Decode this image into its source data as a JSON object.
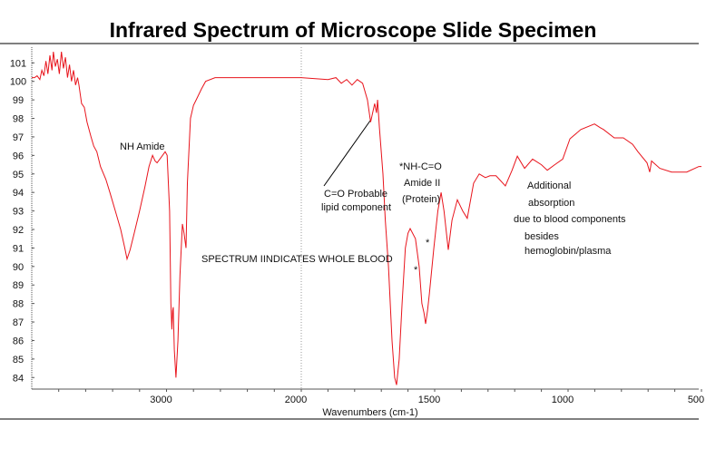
{
  "chart_data": {
    "type": "line",
    "title": "Infrared Spectrum of Microscope Slide Specimen",
    "xlabel": "Wavenumbers (cm-1)",
    "ylabel": "",
    "xlim": [
      4000,
      500
    ],
    "ylim": [
      83.4,
      102
    ],
    "x_scale_note": "2x expanded below 2000",
    "x_ticks": [
      3000,
      2000,
      1500,
      1000,
      500
    ],
    "y_ticks": [
      84,
      85,
      86,
      87,
      88,
      89,
      90,
      91,
      92,
      93,
      94,
      95,
      96,
      97,
      98,
      99,
      100,
      101
    ],
    "grid": false,
    "line_color": "#e8141c",
    "series": [
      {
        "name": "spectrum",
        "x": [
          4000,
          3980,
          3960,
          3940,
          3925,
          3910,
          3895,
          3880,
          3865,
          3850,
          3840,
          3825,
          3810,
          3795,
          3780,
          3765,
          3750,
          3735,
          3720,
          3705,
          3690,
          3675,
          3660,
          3650,
          3630,
          3610,
          3590,
          3560,
          3540,
          3517,
          3490,
          3450,
          3420,
          3380,
          3340,
          3310,
          3293,
          3270,
          3240,
          3200,
          3160,
          3130,
          3104,
          3085,
          3070,
          3040,
          3010,
          2995,
          2977,
          2968,
          2960,
          2955,
          2950,
          2942,
          2930,
          2915,
          2900,
          2882,
          2870,
          2855,
          2845,
          2822,
          2800,
          2780,
          2740,
          2710,
          2640,
          2500,
          2300,
          2100,
          2000,
          1900,
          1870,
          1850,
          1830,
          1810,
          1790,
          1770,
          1752,
          1740,
          1725,
          1718,
          1714,
          1707,
          1694,
          1685,
          1673,
          1660,
          1650,
          1643,
          1633,
          1622,
          1610,
          1600,
          1592,
          1572,
          1558,
          1548,
          1540,
          1534,
          1527,
          1520,
          1503,
          1488,
          1476,
          1465,
          1449,
          1435,
          1415,
          1395,
          1378,
          1354,
          1333,
          1310,
          1293,
          1270,
          1235,
          1210,
          1190,
          1163,
          1133,
          1100,
          1078,
          1050,
          1020,
          993,
          952,
          901,
          880,
          867,
          827,
          793,
          758,
          738,
          704,
          694,
          687,
          656,
          612,
          555,
          510,
          500
        ],
        "y": [
          100.2,
          100.2,
          100.3,
          100.1,
          100.6,
          100.3,
          101.1,
          100.4,
          101.4,
          100.6,
          101.6,
          100.8,
          101.2,
          100.4,
          101.6,
          100.7,
          101.3,
          100.2,
          100.9,
          100.0,
          100.6,
          99.8,
          100.2,
          99.8,
          98.8,
          98.6,
          97.8,
          97.0,
          96.5,
          96.2,
          95.4,
          94.7,
          94.0,
          93.0,
          92.0,
          91.0,
          90.4,
          90.9,
          91.8,
          93.0,
          94.3,
          95.4,
          96.0,
          95.7,
          95.6,
          95.9,
          96.2,
          96.0,
          93.0,
          88.0,
          86.6,
          87.6,
          87.8,
          85.5,
          84.0,
          86.0,
          89.5,
          92.3,
          91.8,
          91.0,
          94.5,
          98.0,
          98.7,
          99.0,
          99.6,
          100.0,
          100.2,
          100.2,
          100.2,
          100.2,
          100.2,
          100.1,
          100.2,
          99.9,
          100.1,
          99.8,
          100.1,
          99.9,
          99.0,
          97.8,
          98.8,
          98.3,
          99.0,
          97.5,
          95.0,
          92.5,
          90.0,
          86.0,
          84.0,
          83.6,
          85.0,
          88.0,
          91.0,
          91.8,
          92.05,
          91.5,
          90.0,
          88.0,
          87.5,
          86.9,
          87.6,
          88.5,
          91.0,
          93.0,
          94.0,
          93.0,
          90.9,
          92.5,
          93.6,
          93.0,
          92.6,
          94.5,
          95.0,
          94.8,
          94.9,
          94.9,
          94.35,
          95.2,
          95.96,
          95.3,
          95.8,
          95.5,
          95.2,
          95.5,
          95.8,
          96.9,
          97.4,
          97.7,
          97.5,
          97.4,
          96.95,
          96.95,
          96.6,
          96.2,
          95.6,
          95.1,
          95.7,
          95.3,
          95.1,
          95.1,
          95.4,
          95.4
        ]
      }
    ],
    "annotations": [
      {
        "id": "nh",
        "text": "NH Amide"
      },
      {
        "id": "co1",
        "text": "C=O Probable"
      },
      {
        "id": "co2",
        "text": "lipid component"
      },
      {
        "id": "nhco",
        "text": "*NH-C=O"
      },
      {
        "id": "amide2",
        "text": "Amide II"
      },
      {
        "id": "protein",
        "text": "(Protein)"
      },
      {
        "id": "star1",
        "text": "*"
      },
      {
        "id": "star2",
        "text": "*"
      },
      {
        "id": "whole",
        "text": "SPECTRUM IINDICATES WHOLE BLOOD"
      },
      {
        "id": "add1",
        "text": "Additional"
      },
      {
        "id": "add2",
        "text": "absorption"
      },
      {
        "id": "add3",
        "text": "due to blood components"
      },
      {
        "id": "add4",
        "text": "besides"
      },
      {
        "id": "add5",
        "text": "hemoglobin/plasma"
      }
    ]
  }
}
